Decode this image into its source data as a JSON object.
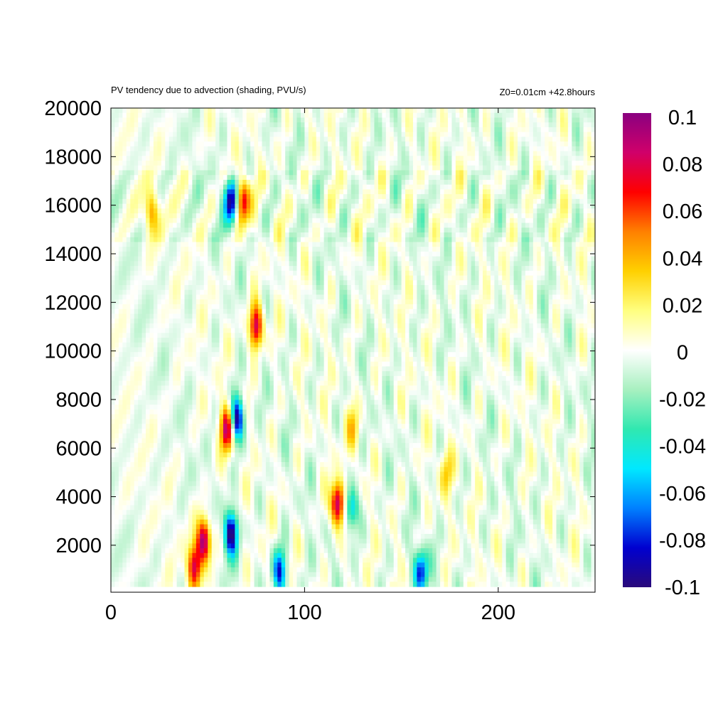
{
  "chart_data": {
    "type": "heatmap",
    "title": "PV tendency due to advection (shading, PVU/s)",
    "subtitle": "Z0=0.01cm   +42.8hours",
    "xlabel": "",
    "ylabel": "",
    "xlim": [
      0,
      250
    ],
    "ylim": [
      300,
      20000
    ],
    "x_ticks": [
      0,
      100,
      200
    ],
    "y_ticks": [
      2000,
      4000,
      6000,
      8000,
      10000,
      12000,
      14000,
      16000,
      18000,
      20000
    ],
    "colorbar": {
      "range": [
        -0.1,
        0.1
      ],
      "ticks": [
        "0.1",
        "0.08",
        "0.06",
        "0.04",
        "0.02",
        "0",
        "-0.02",
        "-0.04",
        "-0.06",
        "-0.08",
        "-0.1"
      ],
      "colors": [
        "#2a0a7a",
        "#0000d0",
        "#0080ff",
        "#00e8ff",
        "#30e8b0",
        "#a8f0c0",
        "#ffffff",
        "#ffff80",
        "#ffd000",
        "#ff8000",
        "#ff0000",
        "#d0006a",
        "#8a0080"
      ]
    },
    "grid": false,
    "features": [
      {
        "x": 65,
        "y": 7200,
        "value": -0.1
      },
      {
        "x": 62,
        "y": 2500,
        "value": -0.1
      },
      {
        "x": 48,
        "y": 2200,
        "value": 0.1
      },
      {
        "x": 43,
        "y": 1100,
        "value": 0.08
      },
      {
        "x": 60,
        "y": 6800,
        "value": 0.09
      },
      {
        "x": 75,
        "y": 11000,
        "value": 0.09
      },
      {
        "x": 68,
        "y": 16200,
        "value": 0.08
      },
      {
        "x": 62,
        "y": 16200,
        "value": -0.1
      },
      {
        "x": 117,
        "y": 3700,
        "value": 0.1
      },
      {
        "x": 124,
        "y": 3500,
        "value": -0.06
      },
      {
        "x": 87,
        "y": 900,
        "value": -0.08
      },
      {
        "x": 160,
        "y": 900,
        "value": -0.08
      },
      {
        "x": 21,
        "y": 15700,
        "value": 0.05
      },
      {
        "x": 125,
        "y": 6800,
        "value": 0.03
      },
      {
        "x": 173,
        "y": 5000,
        "value": 0.03
      }
    ]
  }
}
